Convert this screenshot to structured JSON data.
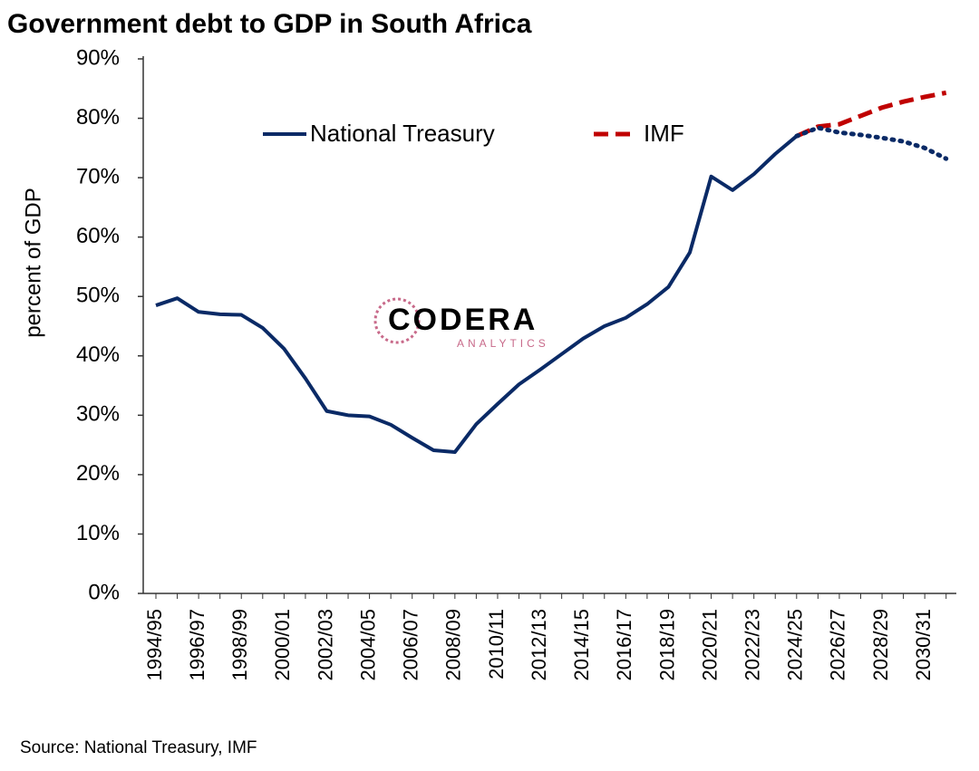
{
  "chart_data": {
    "type": "line",
    "title": "Government debt to GDP in South Africa",
    "y_label": "percent of GDP",
    "source": "Source: National Treasury, IMF",
    "logo": {
      "name": "CODERA",
      "tagline": "ANALYTICS"
    },
    "categories": [
      "1994/95",
      null,
      "1996/97",
      null,
      "1998/99",
      null,
      "2000/01",
      null,
      "2002/03",
      null,
      "2004/05",
      null,
      "2006/07",
      null,
      "2008/09",
      null,
      "2010/11",
      null,
      "2012/13",
      null,
      "2014/15",
      null,
      "2016/17",
      null,
      "2018/19",
      null,
      "2020/21",
      null,
      "2022/23",
      null,
      "2024/25",
      null,
      "2026/27",
      null,
      "2028/29",
      null,
      "2030/31",
      null
    ],
    "series": [
      {
        "name": "National Treasury",
        "color": "#0a2a66",
        "style": "solid",
        "values": [
          48.5,
          49.7,
          47.4,
          47.0,
          46.9,
          44.7,
          41.2,
          36.2,
          30.7,
          30.0,
          29.8,
          28.4,
          26.2,
          24.1,
          23.8,
          28.5,
          31.9,
          35.2,
          37.7,
          40.3,
          42.9,
          45.0,
          46.4,
          48.7,
          51.6,
          57.4,
          70.2,
          67.9,
          70.6,
          74.0,
          77.0,
          null,
          null,
          null,
          null,
          null,
          null,
          null
        ]
      },
      {
        "color": "#0a2a66",
        "style": "dotted",
        "values": [
          null,
          null,
          null,
          null,
          null,
          null,
          null,
          null,
          null,
          null,
          null,
          null,
          null,
          null,
          null,
          null,
          null,
          null,
          null,
          null,
          null,
          null,
          null,
          null,
          null,
          null,
          null,
          null,
          null,
          null,
          77.0,
          78.4,
          77.6,
          77.2,
          76.7,
          76.1,
          75.0,
          73.2
        ]
      },
      {
        "name": "IMF",
        "color": "#c00000",
        "style": "dashed",
        "values": [
          null,
          null,
          null,
          null,
          null,
          null,
          null,
          null,
          null,
          null,
          null,
          null,
          null,
          null,
          null,
          null,
          null,
          null,
          null,
          null,
          null,
          null,
          null,
          null,
          null,
          null,
          null,
          null,
          null,
          null,
          77.0,
          78.6,
          79.0,
          80.4,
          81.8,
          82.8,
          83.6,
          84.3
        ]
      }
    ],
    "ylim": [
      0,
      90
    ],
    "yticks": [
      {
        "value": 0,
        "label": "0%"
      },
      {
        "value": 10,
        "label": "10%"
      },
      {
        "value": 20,
        "label": "20%"
      },
      {
        "value": 30,
        "label": "30%"
      },
      {
        "value": 40,
        "label": "40%"
      },
      {
        "value": 50,
        "label": "50%"
      },
      {
        "value": 60,
        "label": "60%"
      },
      {
        "value": 70,
        "label": "70%"
      },
      {
        "value": 80,
        "label": "80%"
      },
      {
        "value": 90,
        "label": "90%"
      }
    ],
    "grid": false
  }
}
